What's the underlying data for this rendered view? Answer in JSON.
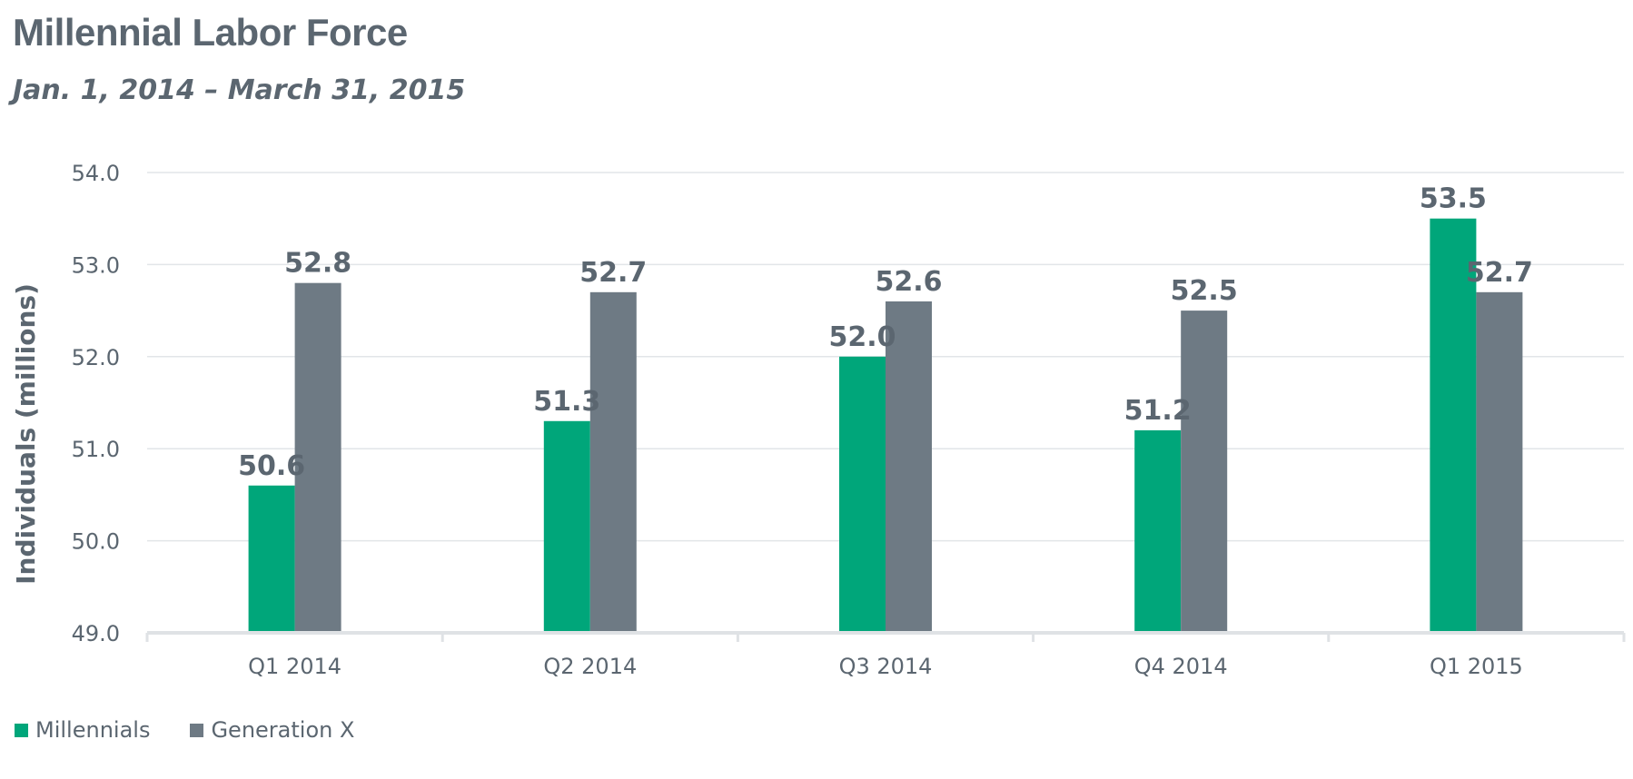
{
  "chart_data": {
    "type": "bar",
    "title": "Millennial Labor Force",
    "subtitle": "Jan. 1, 2014 – March 31, 2015",
    "xlabel": "",
    "ylabel": "Individuals (millions)",
    "ylim": [
      49.0,
      54.0
    ],
    "yticks": [
      "49.0",
      "50.0",
      "51.0",
      "52.0",
      "53.0",
      "54.0"
    ],
    "categories": [
      "Q1 2014",
      "Q2 2014",
      "Q3 2014",
      "Q4 2014",
      "Q1 2015"
    ],
    "series": [
      {
        "name": "Millennials",
        "color": "#00a67a",
        "values": [
          50.6,
          51.3,
          52.0,
          51.2,
          53.5
        ],
        "labels": [
          "50.6",
          "51.3",
          "52.0",
          "51.2",
          "53.5"
        ]
      },
      {
        "name": "Generation X",
        "color": "#6e7a84",
        "values": [
          52.8,
          52.7,
          52.6,
          52.5,
          52.7
        ],
        "labels": [
          "52.8",
          "52.7",
          "52.6",
          "52.5",
          "52.7"
        ]
      }
    ],
    "grid": true,
    "legend": "bottom-left"
  }
}
